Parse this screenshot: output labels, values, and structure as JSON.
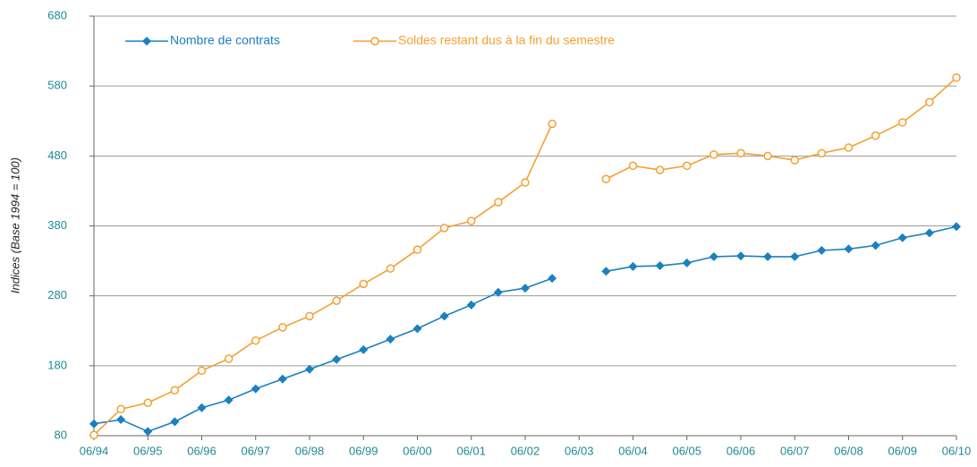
{
  "chart_data": {
    "type": "line",
    "y_label": "Indices (Base 1994 = 100)",
    "categories": [
      "06/94",
      null,
      "06/95",
      null,
      "06/96",
      null,
      "06/97",
      null,
      "06/98",
      null,
      "06/99",
      null,
      "06/00",
      null,
      "06/01",
      null,
      "06/02",
      null,
      "06/03",
      null,
      "06/04",
      null,
      "06/05",
      null,
      "06/06",
      null,
      "06/07",
      null,
      "06/08",
      null,
      "06/09",
      null,
      "06/10"
    ],
    "series": [
      {
        "name": "Nombre de contrats",
        "color": "#1b80bf",
        "marker": "diamond",
        "values": [
          97,
          103,
          86,
          100,
          120,
          131,
          147,
          161,
          175,
          189,
          203,
          218,
          233,
          251,
          267,
          285,
          291,
          305,
          null,
          315,
          322,
          323,
          327,
          336,
          337,
          336,
          336,
          345,
          347,
          352,
          363,
          370,
          379
        ]
      },
      {
        "name": "Soldes restant dus à la fin du semestre",
        "color": "#f5a032",
        "marker": "circle",
        "values": [
          81,
          118,
          127,
          145,
          173,
          190,
          216,
          235,
          251,
          273,
          297,
          319,
          346,
          377,
          387,
          414,
          442,
          526,
          null,
          447,
          466,
          460,
          466,
          482,
          484,
          480,
          474,
          484,
          492,
          509,
          528,
          557,
          592
        ]
      }
    ],
    "ylim": [
      80,
      680
    ],
    "yticks": [
      80,
      180,
      280,
      380,
      480,
      580,
      680
    ],
    "grid": true,
    "legend": "top-left"
  }
}
